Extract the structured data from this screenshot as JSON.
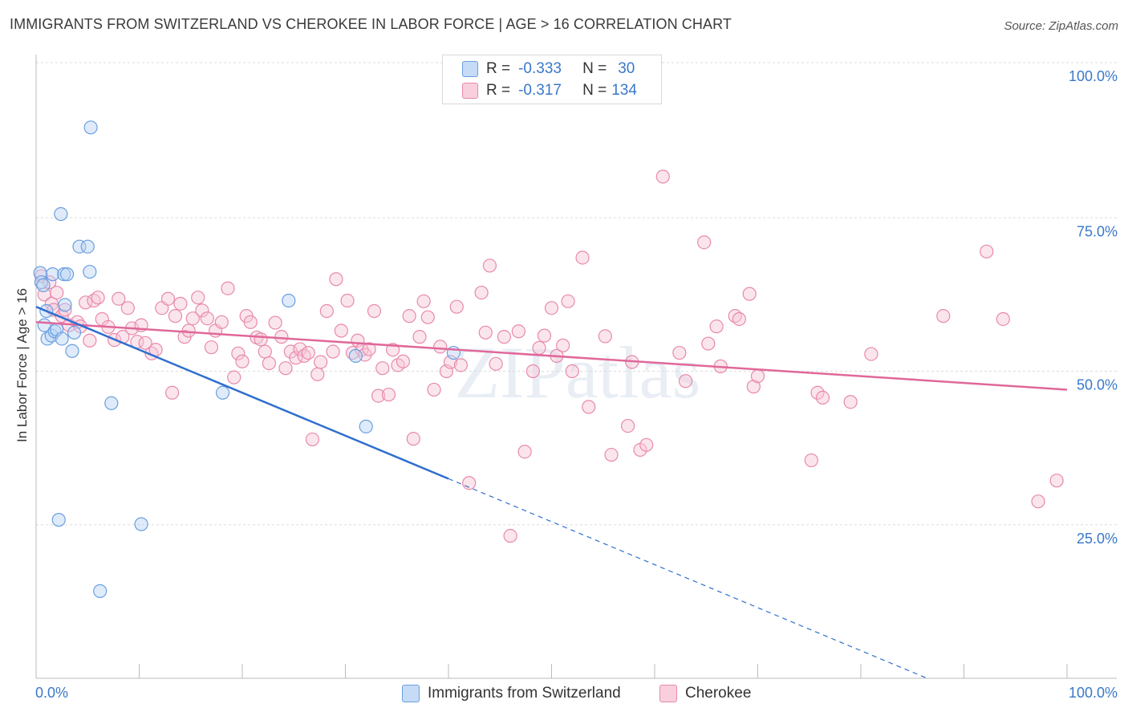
{
  "title": "IMMIGRANTS FROM SWITZERLAND VS CHEROKEE IN LABOR FORCE | AGE > 16 CORRELATION CHART",
  "source": "Source: ZipAtlas.com",
  "watermark": "ZIPatlas",
  "legend": {
    "rows": [
      {
        "r_label": "R =",
        "r_value": "-0.333",
        "n_label": "N =",
        "n_value": "30"
      },
      {
        "r_label": "R =",
        "r_value": "-0.317",
        "n_label": "N =",
        "n_value": "134"
      }
    ]
  },
  "chart_data": {
    "type": "scatter",
    "ylabel": "In Labor Force | Age > 16",
    "xlim": [
      0,
      100
    ],
    "ylim": [
      0,
      100
    ],
    "x_tick_labels": [
      "0.0%",
      "100.0%"
    ],
    "y_tick_labels": [
      {
        "v": 100,
        "label": "100.0%"
      },
      {
        "v": 75,
        "label": "75.0%"
      },
      {
        "v": 50,
        "label": "50.0%"
      },
      {
        "v": 25,
        "label": "25.0%"
      }
    ],
    "grid": true,
    "legend_position": "top-center",
    "series": [
      {
        "name": "Immigrants from Switzerland",
        "color": "#6a9fe0",
        "fill": "#b9d3f3",
        "line_color": "#2f6fcf",
        "trend": {
          "x0": 0,
          "y0": 60.5,
          "x1": 40,
          "y1": 32.5,
          "dash_x_end": 100
        },
        "points": [
          [
            0.4,
            66
          ],
          [
            0.5,
            64.5
          ],
          [
            0.7,
            64
          ],
          [
            0.8,
            57.5
          ],
          [
            1.0,
            59.8
          ],
          [
            1.1,
            55.3
          ],
          [
            1.5,
            55.8
          ],
          [
            1.6,
            65.8
          ],
          [
            1.8,
            56.5
          ],
          [
            2.0,
            56.8
          ],
          [
            2.2,
            25.8
          ],
          [
            2.4,
            75.6
          ],
          [
            2.5,
            55.3
          ],
          [
            2.7,
            65.8
          ],
          [
            2.8,
            60.8
          ],
          [
            3.0,
            65.8
          ],
          [
            3.5,
            53.3
          ],
          [
            3.7,
            56.3
          ],
          [
            4.2,
            70.3
          ],
          [
            5.0,
            70.3
          ],
          [
            5.2,
            66.2
          ],
          [
            5.3,
            89.7
          ],
          [
            6.2,
            14.2
          ],
          [
            7.3,
            44.8
          ],
          [
            10.2,
            25.1
          ],
          [
            18.1,
            46.5
          ],
          [
            24.5,
            61.5
          ],
          [
            31.0,
            52.5
          ],
          [
            32.0,
            41.0
          ],
          [
            40.5,
            53.0
          ]
        ]
      },
      {
        "name": "Cherokee",
        "color": "#e889ab",
        "fill": "#f6c6d7",
        "line_color": "#e0689a",
        "trend": {
          "x0": 0,
          "y0": 58,
          "x1": 100,
          "y1": 47
        },
        "points": [
          [
            0.5,
            65.5
          ],
          [
            0.8,
            62.5
          ],
          [
            1.3,
            64.5
          ],
          [
            1.5,
            61.0
          ],
          [
            1.7,
            60.0
          ],
          [
            2.0,
            62.8
          ],
          [
            2.5,
            59.0
          ],
          [
            2.8,
            60.0
          ],
          [
            3.2,
            57.5
          ],
          [
            4.0,
            58.0
          ],
          [
            4.3,
            57.3
          ],
          [
            4.8,
            61.2
          ],
          [
            5.2,
            55.0
          ],
          [
            5.6,
            61.5
          ],
          [
            6.0,
            62.0
          ],
          [
            6.4,
            58.5
          ],
          [
            7.0,
            57.2
          ],
          [
            7.6,
            55.1
          ],
          [
            8.0,
            61.8
          ],
          [
            8.4,
            55.6
          ],
          [
            8.9,
            60.3
          ],
          [
            9.3,
            57.0
          ],
          [
            9.8,
            54.8
          ],
          [
            10.2,
            57.5
          ],
          [
            10.6,
            54.6
          ],
          [
            11.2,
            52.9
          ],
          [
            11.6,
            53.5
          ],
          [
            12.2,
            60.3
          ],
          [
            12.8,
            61.8
          ],
          [
            13.2,
            46.5
          ],
          [
            13.5,
            59.0
          ],
          [
            14.0,
            61.0
          ],
          [
            14.4,
            55.6
          ],
          [
            14.8,
            56.6
          ],
          [
            15.2,
            58.6
          ],
          [
            15.7,
            62.0
          ],
          [
            16.1,
            59.9
          ],
          [
            16.6,
            58.6
          ],
          [
            17.0,
            53.9
          ],
          [
            17.4,
            56.6
          ],
          [
            18.0,
            58.0
          ],
          [
            18.6,
            63.5
          ],
          [
            19.2,
            49.0
          ],
          [
            19.6,
            52.9
          ],
          [
            20.0,
            51.6
          ],
          [
            20.4,
            59.0
          ],
          [
            20.8,
            58.0
          ],
          [
            21.4,
            55.5
          ],
          [
            21.8,
            55.2
          ],
          [
            22.2,
            53.2
          ],
          [
            22.6,
            51.3
          ],
          [
            23.2,
            57.9
          ],
          [
            23.8,
            55.6
          ],
          [
            24.2,
            50.5
          ],
          [
            24.7,
            53.2
          ],
          [
            25.2,
            52.2
          ],
          [
            25.6,
            53.6
          ],
          [
            26.0,
            52.5
          ],
          [
            26.4,
            53.0
          ],
          [
            26.8,
            38.9
          ],
          [
            27.3,
            49.5
          ],
          [
            27.6,
            51.5
          ],
          [
            28.2,
            59.8
          ],
          [
            28.8,
            53.2
          ],
          [
            29.1,
            65.0
          ],
          [
            29.6,
            56.6
          ],
          [
            30.2,
            61.5
          ],
          [
            30.7,
            53.0
          ],
          [
            31.2,
            55.0
          ],
          [
            31.6,
            53.5
          ],
          [
            31.9,
            52.7
          ],
          [
            32.3,
            53.6
          ],
          [
            32.8,
            59.8
          ],
          [
            33.2,
            46.0
          ],
          [
            33.6,
            50.5
          ],
          [
            34.2,
            46.2
          ],
          [
            34.6,
            53.5
          ],
          [
            35.1,
            51.0
          ],
          [
            35.6,
            51.6
          ],
          [
            36.2,
            59.0
          ],
          [
            36.6,
            39.0
          ],
          [
            37.2,
            55.6
          ],
          [
            37.6,
            61.4
          ],
          [
            38.0,
            58.8
          ],
          [
            38.6,
            47.0
          ],
          [
            39.2,
            54.0
          ],
          [
            39.8,
            50.0
          ],
          [
            40.2,
            51.5
          ],
          [
            40.8,
            60.5
          ],
          [
            41.2,
            51.0
          ],
          [
            42.0,
            31.8
          ],
          [
            43.2,
            62.8
          ],
          [
            43.6,
            56.3
          ],
          [
            44.0,
            67.2
          ],
          [
            44.6,
            51.2
          ],
          [
            45.4,
            55.6
          ],
          [
            46.0,
            23.2
          ],
          [
            46.8,
            56.5
          ],
          [
            47.4,
            36.9
          ],
          [
            48.2,
            50.0
          ],
          [
            48.8,
            53.8
          ],
          [
            49.3,
            55.8
          ],
          [
            50.0,
            60.3
          ],
          [
            50.5,
            52.5
          ],
          [
            51.1,
            54.2
          ],
          [
            51.6,
            61.4
          ],
          [
            52.0,
            50.0
          ],
          [
            53.0,
            68.5
          ],
          [
            53.6,
            44.2
          ],
          [
            55.2,
            55.7
          ],
          [
            55.8,
            36.4
          ],
          [
            57.4,
            41.1
          ],
          [
            57.8,
            51.5
          ],
          [
            58.6,
            37.2
          ],
          [
            59.2,
            38.0
          ],
          [
            60.8,
            81.7
          ],
          [
            62.4,
            53.0
          ],
          [
            63.0,
            48.4
          ],
          [
            64.8,
            71.0
          ],
          [
            65.2,
            54.5
          ],
          [
            66.0,
            57.3
          ],
          [
            66.4,
            50.8
          ],
          [
            67.8,
            59.0
          ],
          [
            68.2,
            58.5
          ],
          [
            69.2,
            62.6
          ],
          [
            69.6,
            47.5
          ],
          [
            70.0,
            49.2
          ],
          [
            75.2,
            35.5
          ],
          [
            75.8,
            46.5
          ],
          [
            76.3,
            45.7
          ],
          [
            79.0,
            45.0
          ],
          [
            81.0,
            52.8
          ],
          [
            88.0,
            59.0
          ],
          [
            92.2,
            69.5
          ],
          [
            93.8,
            58.5
          ],
          [
            97.2,
            28.8
          ],
          [
            99.0,
            32.2
          ]
        ]
      }
    ]
  },
  "bottom_legend": [
    {
      "label": "Immigrants from Switzerland"
    },
    {
      "label": "Cherokee"
    }
  ]
}
